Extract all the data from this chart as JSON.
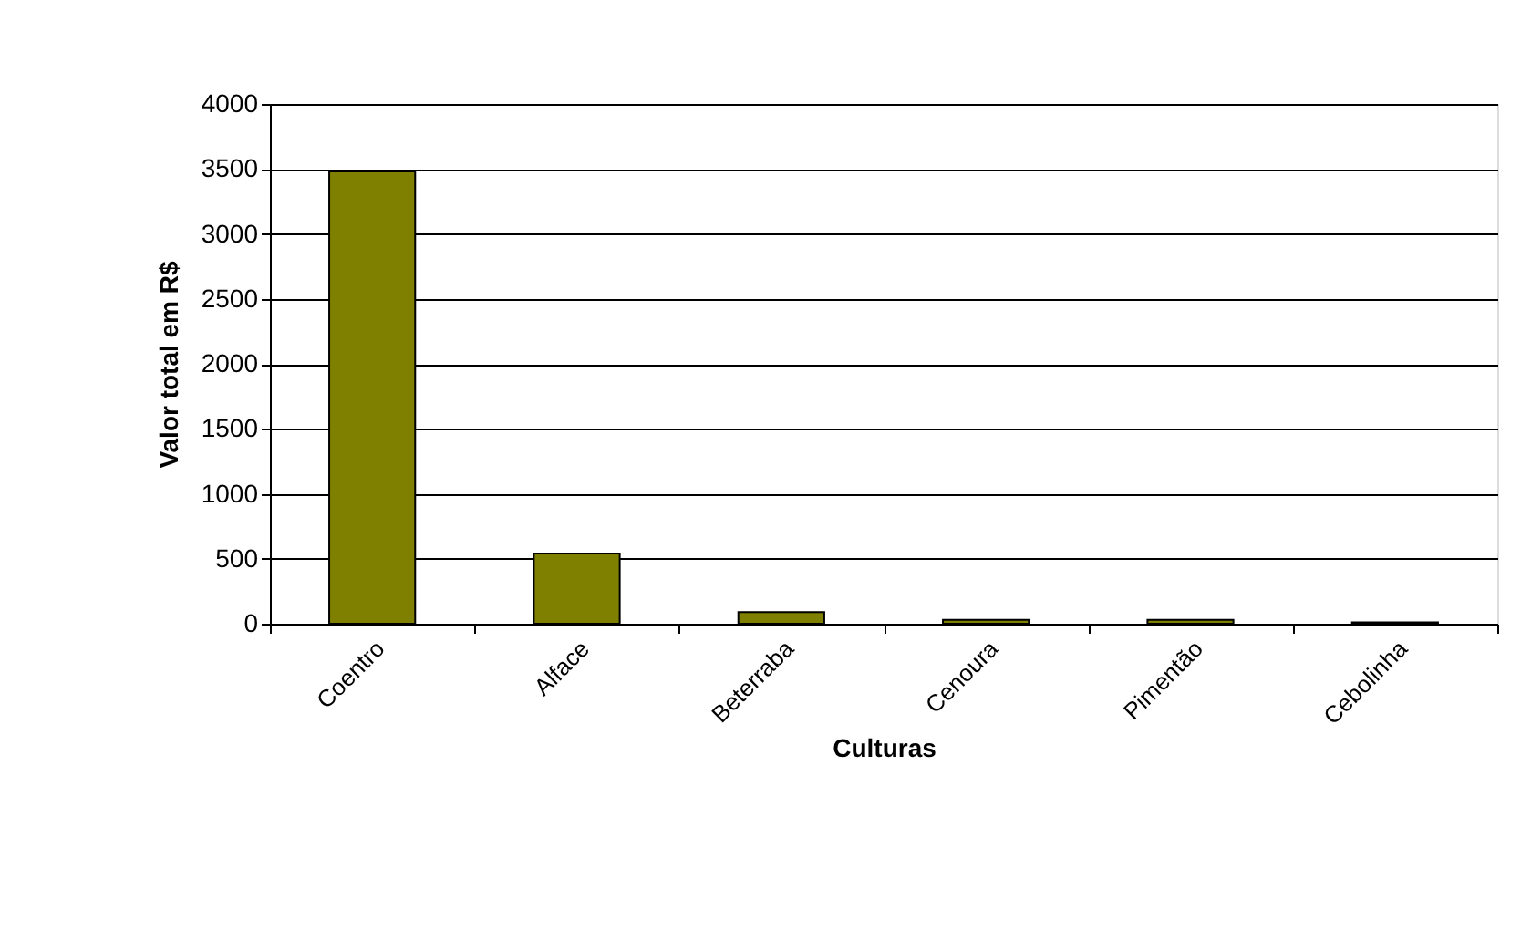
{
  "chart_data": {
    "type": "bar",
    "xlabel": "Culturas",
    "ylabel": "Valor total em R$",
    "categories": [
      "Coentro",
      "Alface",
      "Beterraba",
      "Cenoura",
      "Pimentão",
      "Cebolinha"
    ],
    "values": [
      3480,
      540,
      90,
      30,
      30,
      10
    ],
    "color": "#808000",
    "ylim": [
      0,
      4000
    ],
    "yticks": [
      0,
      500,
      1000,
      1500,
      2000,
      2500,
      3000,
      3500,
      4000
    ],
    "grid": "y"
  }
}
